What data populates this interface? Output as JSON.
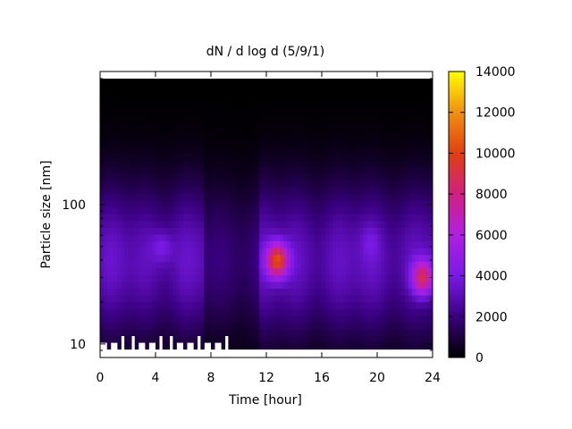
{
  "chart_data": {
    "type": "heatmap",
    "title": "dN / d log d (5/9/1)",
    "xlabel": "Time [hour]",
    "ylabel": "Particle size [nm]",
    "xlim": [
      0,
      24
    ],
    "ylim": [
      8,
      900
    ],
    "y_scale": "log",
    "x_ticks": [
      0,
      4,
      8,
      12,
      16,
      20,
      24
    ],
    "x_tick_labels": [
      "0",
      "4",
      "8",
      "12",
      "16",
      "20",
      "24"
    ],
    "y_ticks": [
      10,
      100
    ],
    "y_tick_labels": [
      "10",
      "100"
    ],
    "colorbar": {
      "min": 0,
      "max": 14000,
      "ticks": [
        0,
        2000,
        4000,
        6000,
        8000,
        10000,
        12000,
        14000
      ],
      "tick_labels": [
        "0",
        "2000",
        "4000",
        "6000",
        "8000",
        "10000",
        "12000",
        "14000"
      ],
      "palette": [
        "#000000",
        "#3a0080",
        "#7a1ae6",
        "#b020e0",
        "#d02080",
        "#e04010",
        "#f09010",
        "#ffff00"
      ]
    },
    "hotspots": [
      {
        "time_hr": 12.8,
        "size_nm": 40,
        "value": 10500
      },
      {
        "time_hr": 23.3,
        "size_nm": 30,
        "value": 9000
      },
      {
        "time_hr": 4.5,
        "size_nm": 50,
        "value": 4500
      },
      {
        "time_hr": 19.5,
        "size_nm": 55,
        "value": 3800
      }
    ],
    "grid": false
  }
}
